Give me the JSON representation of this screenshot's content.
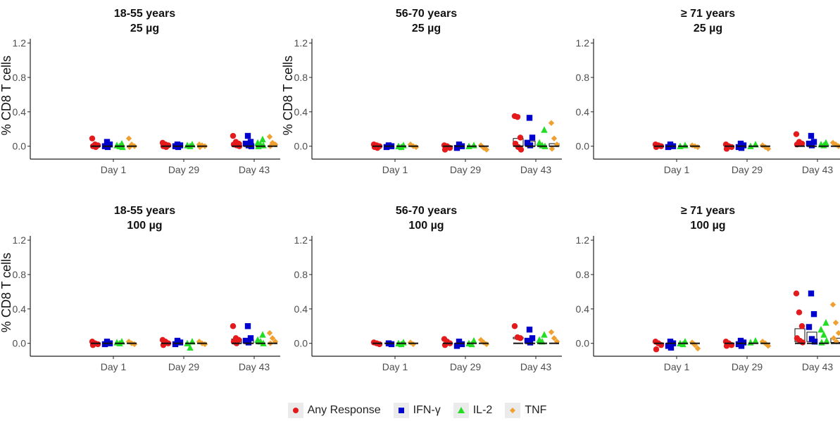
{
  "chart_data": {
    "type": "scatter",
    "ylabel": "% CD8 T cells",
    "ylim": [
      -0.15,
      1.25
    ],
    "yticks": [
      "0.0",
      "0.4",
      "0.8",
      "1.2"
    ],
    "categories": [
      "Day 1",
      "Day 29",
      "Day 43"
    ],
    "series_names": [
      "Any Response",
      "IFN-γ",
      "IL-2",
      "TNF"
    ],
    "colors": {
      "Any Response": "#e41a1c",
      "IFN-γ": "#0000cd",
      "IL-2": "#22dd22",
      "TNF": "#f0a030"
    },
    "markers": {
      "Any Response": "circle",
      "IFN-γ": "square",
      "IL-2": "triangle",
      "TNF": "diamond"
    },
    "panels": [
      {
        "title1": "18-55 years",
        "title2": "25 µg",
        "show_ylabel": true,
        "data": {
          "Day 1": {
            "Any Response": [
              0.09,
              0.02,
              0.01,
              0.0,
              -0.01
            ],
            "IFN-γ": [
              0.05,
              0.02,
              0.0,
              -0.01
            ],
            "IL-2": [
              0.03,
              0.01,
              0.0,
              -0.01
            ],
            "TNF": [
              0.09,
              0.02,
              0.0,
              -0.01
            ]
          },
          "Day 29": {
            "Any Response": [
              0.04,
              0.02,
              0.01,
              0.0,
              -0.01
            ],
            "IFN-γ": [
              0.02,
              0.01,
              0.0,
              -0.01
            ],
            "IL-2": [
              0.02,
              0.01,
              0.0
            ],
            "TNF": [
              0.02,
              0.01,
              0.0,
              -0.01
            ]
          },
          "Day 43": {
            "Any Response": [
              0.12,
              0.05,
              0.03,
              0.02,
              0.01,
              0.0
            ],
            "IFN-γ": [
              0.12,
              0.05,
              0.03,
              0.01,
              0.0
            ],
            "IL-2": [
              0.08,
              0.04,
              0.02,
              0.01,
              0.0
            ],
            "TNF": [
              0.11,
              0.04,
              0.02,
              0.0
            ]
          }
        },
        "boxes": {
          "Day 43": {
            "Any Response": [
              0.01,
              0.04
            ],
            "IFN-γ": [
              0.01,
              0.03
            ]
          }
        }
      },
      {
        "title1": "56-70 years",
        "title2": "25 µg",
        "show_ylabel": true,
        "data": {
          "Day 1": {
            "Any Response": [
              0.02,
              0.01,
              0.0,
              -0.01,
              -0.02
            ],
            "IFN-γ": [
              0.01,
              0.0,
              -0.01
            ],
            "IL-2": [
              0.01,
              0.0,
              -0.01
            ],
            "TNF": [
              0.02,
              0.0,
              -0.01
            ]
          },
          "Day 29": {
            "Any Response": [
              0.01,
              0.0,
              -0.02,
              -0.04
            ],
            "IFN-γ": [
              0.02,
              0.0,
              -0.02
            ],
            "IL-2": [
              0.01,
              0.0
            ],
            "TNF": [
              0.01,
              -0.02,
              -0.04
            ]
          },
          "Day 43": {
            "Any Response": [
              0.35,
              0.34,
              0.1,
              0.03,
              -0.01,
              -0.04
            ],
            "IFN-γ": [
              0.33,
              0.1,
              0.04,
              0.01
            ],
            "IL-2": [
              0.19,
              0.04,
              0.01,
              0.0
            ],
            "TNF": [
              0.27,
              0.09,
              0.02,
              -0.03
            ]
          }
        },
        "boxes": {
          "Day 43": {
            "Any Response": [
              0.0,
              0.09
            ],
            "IFN-γ": [
              0.0,
              0.06
            ],
            "TNF": [
              0.0,
              0.03
            ]
          }
        }
      },
      {
        "title1": "≥ 71 years",
        "title2": "25 µg",
        "show_ylabel": false,
        "data": {
          "Day 1": {
            "Any Response": [
              0.02,
              0.01,
              0.0,
              -0.01
            ],
            "IFN-γ": [
              0.02,
              0.0,
              -0.01
            ],
            "IL-2": [
              0.01,
              0.0
            ],
            "TNF": [
              0.01,
              0.0,
              -0.01
            ]
          },
          "Day 29": {
            "Any Response": [
              0.02,
              0.0,
              -0.01,
              -0.03
            ],
            "IFN-γ": [
              0.03,
              0.01,
              -0.01,
              -0.02
            ],
            "IL-2": [
              0.02,
              0.0
            ],
            "TNF": [
              0.01,
              -0.01,
              -0.03
            ]
          },
          "Day 43": {
            "Any Response": [
              0.14,
              0.05,
              0.03,
              0.02
            ],
            "IFN-γ": [
              0.12,
              0.05,
              0.03,
              0.01
            ],
            "IL-2": [
              0.04,
              0.02,
              0.01
            ],
            "TNF": [
              0.04,
              0.02,
              0.0
            ]
          }
        },
        "boxes": {}
      },
      {
        "title1": "18-55 years",
        "title2": "100 µg",
        "show_ylabel": true,
        "data": {
          "Day 1": {
            "Any Response": [
              0.02,
              0.0,
              -0.01,
              -0.02
            ],
            "IFN-γ": [
              0.02,
              0.0,
              -0.01
            ],
            "IL-2": [
              0.02,
              0.01,
              0.0
            ],
            "TNF": [
              0.02,
              0.0,
              -0.01
            ]
          },
          "Day 29": {
            "Any Response": [
              0.04,
              0.02,
              0.0,
              -0.02
            ],
            "IFN-γ": [
              0.03,
              0.01,
              -0.01
            ],
            "IL-2": [
              0.02,
              0.0,
              -0.05
            ],
            "TNF": [
              0.02,
              0.0,
              -0.01
            ]
          },
          "Day 43": {
            "Any Response": [
              0.2,
              0.06,
              0.04,
              0.02,
              0.0
            ],
            "IFN-γ": [
              0.2,
              0.06,
              0.03,
              0.01
            ],
            "IL-2": [
              0.1,
              0.04,
              0.02,
              0.0
            ],
            "TNF": [
              0.12,
              0.06,
              0.02,
              0.0
            ]
          }
        },
        "boxes": {
          "Day 43": {
            "Any Response": [
              0.0,
              0.05
            ],
            "IFN-γ": [
              0.0,
              0.04
            ]
          }
        }
      },
      {
        "title1": "56-70 years",
        "title2": "100 µg",
        "show_ylabel": false,
        "data": {
          "Day 1": {
            "Any Response": [
              0.01,
              0.0,
              -0.01
            ],
            "IFN-γ": [
              0.0,
              -0.01
            ],
            "IL-2": [
              0.01,
              0.0,
              -0.01
            ],
            "TNF": [
              0.01,
              -0.01
            ]
          },
          "Day 29": {
            "Any Response": [
              0.05,
              0.02,
              0.0,
              -0.02
            ],
            "IFN-γ": [
              0.02,
              -0.01,
              -0.03
            ],
            "IL-2": [
              0.03,
              0.0,
              -0.01
            ],
            "TNF": [
              0.04,
              0.01,
              -0.01
            ]
          },
          "Day 43": {
            "Any Response": [
              0.2,
              0.07,
              0.06
            ],
            "IFN-γ": [
              0.16,
              0.06,
              0.03,
              0.01
            ],
            "IL-2": [
              0.1,
              0.04,
              0.02
            ],
            "TNF": [
              0.13,
              0.06,
              0.02
            ]
          }
        },
        "boxes": {
          "Day 43": {
            "Any Response": [
              0.06,
              0.07
            ]
          }
        }
      },
      {
        "title1": "≥ 71 years",
        "title2": "100 µg",
        "show_ylabel": false,
        "data": {
          "Day 1": {
            "Any Response": [
              0.02,
              0.0,
              -0.02,
              -0.07
            ],
            "IFN-γ": [
              0.02,
              0.0,
              -0.03,
              -0.05
            ],
            "IL-2": [
              0.02,
              0.0,
              -0.01
            ],
            "TNF": [
              0.01,
              -0.02,
              -0.06
            ]
          },
          "Day 29": {
            "Any Response": [
              0.02,
              0.0,
              -0.02,
              -0.03
            ],
            "IFN-γ": [
              0.03,
              0.01,
              -0.01,
              -0.03
            ],
            "IL-2": [
              0.03,
              0.01
            ],
            "TNF": [
              0.02,
              0.0,
              -0.03
            ]
          },
          "Day 43": {
            "Any Response": [
              0.58,
              0.36,
              0.2,
              0.06,
              0.03,
              0.01
            ],
            "IFN-γ": [
              0.58,
              0.34,
              0.19,
              0.05,
              0.02
            ],
            "IL-2": [
              0.24,
              0.16,
              0.1,
              0.03,
              0.01
            ],
            "TNF": [
              0.45,
              0.24,
              0.12,
              0.06,
              0.02
            ]
          }
        },
        "boxes": {
          "Day 43": {
            "Any Response": [
              0.02,
              0.17
            ],
            "IFN-γ": [
              0.02,
              0.13
            ],
            "TNF": [
              0.01,
              0.06
            ]
          }
        }
      }
    ],
    "legend_position": "bottom"
  }
}
